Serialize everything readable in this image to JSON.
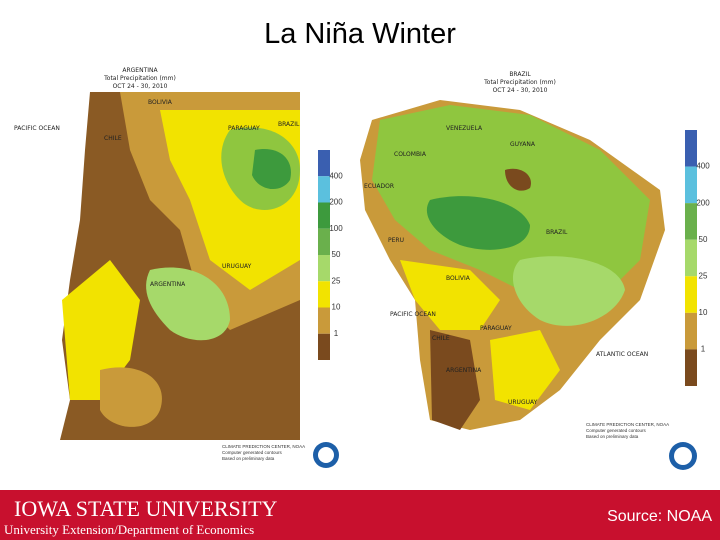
{
  "title": "La Niña Winter",
  "maps": [
    {
      "country": "ARGENTINA",
      "subtitle": "Total Precipitation (mm)",
      "dates": "OCT 24 - 30, 2010",
      "legend_labels": [
        400,
        200,
        100,
        50,
        25,
        10,
        1
      ],
      "labels": [
        "BOLIVIA",
        "PARAGUAY",
        "BRAZIL",
        "CHILE",
        "ARGENTINA",
        "URUGUAY",
        "PACIFIC OCEAN"
      ],
      "credits": [
        "CLIMATE PREDICTION CENTER, NOAA",
        "Computer generated contours",
        "Based on preliminary data"
      ]
    },
    {
      "country": "BRAZIL",
      "subtitle": "Total Precipitation (mm)",
      "dates": "OCT 24 - 30, 2010",
      "legend_labels": [
        400,
        200,
        50,
        25,
        10,
        1
      ],
      "labels": [
        "VENEZUELA",
        "GUYANA",
        "COLOMBIA",
        "ECUADOR",
        "PERU",
        "BRAZIL",
        "BOLIVIA",
        "PACIFIC OCEAN",
        "PARAGUAY",
        "CHILE",
        "ARGENTINA",
        "URUGUAY",
        "ATLANTIC OCEAN"
      ],
      "credits": [
        "CLIMATE PREDICTION CENTER, NOAA",
        "Computer generated contours",
        "Based on preliminary data"
      ]
    }
  ],
  "footer": {
    "university": "IOWA STATE UNIVERSITY",
    "department": "University Extension/Department of Economics",
    "source": "Source: NOAA"
  }
}
